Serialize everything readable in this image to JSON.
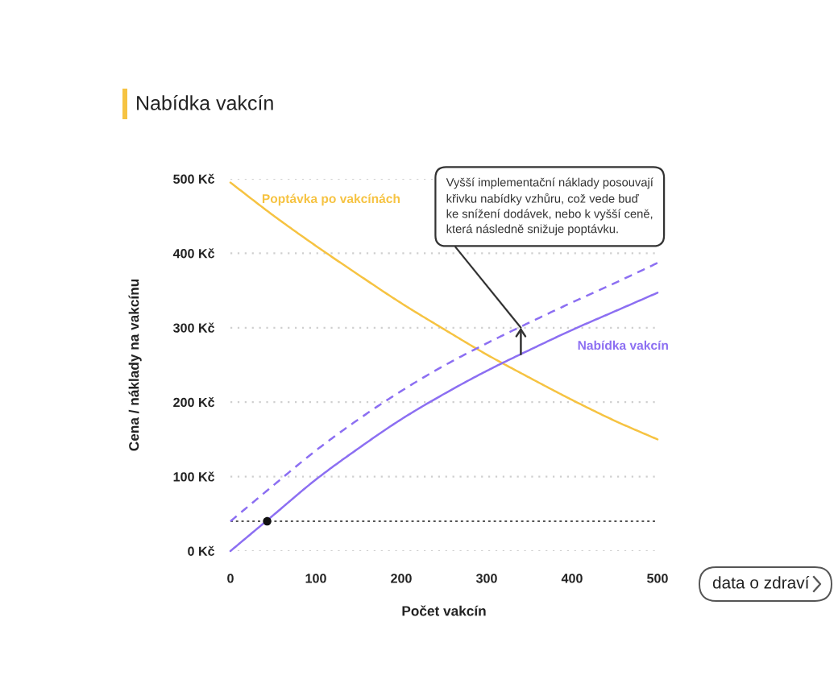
{
  "chart_data": {
    "type": "line",
    "title": "Nabídka vakcín",
    "xlabel": "Počet vakcín",
    "ylabel": "Cena / náklady na vakcínu",
    "x": [
      0,
      50,
      100,
      150,
      200,
      250,
      300,
      350,
      400,
      450,
      500
    ],
    "series": [
      {
        "name": "Poptávka po vakcínách",
        "color": "#f6c342",
        "values": [
          495,
          451,
          410,
          371,
          333,
          298,
          264,
          233,
          203,
          175,
          150
        ]
      },
      {
        "color": "#8c6ff2",
        "line_style": "dashed",
        "values": [
          40,
          88,
          135,
          177,
          215,
          249,
          279,
          307,
          334,
          360,
          387
        ]
      },
      {
        "name": "Nabídka vakcín",
        "color": "#8c6ff2",
        "values": [
          0,
          48,
          96,
          138,
          177,
          211,
          242,
          270,
          297,
          322,
          347
        ]
      },
      {
        "type": "scatter",
        "x": [
          43
        ],
        "values": [
          40
        ],
        "color": "#111111",
        "marker": "circle"
      }
    ],
    "xlim": [
      0,
      500
    ],
    "ylim": [
      0,
      500
    ],
    "xticks": [
      0,
      100,
      200,
      300,
      400,
      500
    ],
    "yticks": [
      {
        "value": 0,
        "label": "0 Kč"
      },
      {
        "value": 100,
        "label": "100 Kč"
      },
      {
        "value": 200,
        "label": "200 Kč"
      },
      {
        "value": 300,
        "label": "300 Kč"
      },
      {
        "value": 400,
        "label": "400 Kč"
      },
      {
        "value": 500,
        "label": "500 Kč"
      }
    ],
    "grid": "y",
    "legend": false,
    "ref_lines": [
      {
        "axis": "y",
        "value": 40,
        "color": "#555555",
        "line_style": "dotted"
      }
    ],
    "annotations": [
      {
        "text": "Vyšší implementační náklady posouvají\nkřivku nabídky vzhůru, což vede buď\nke snížení dodávek, nebo k vyšší ceně,\nkterá následně snižuje poptávku.",
        "x": 340,
        "y": 300
      },
      "data o zdraví"
    ]
  }
}
